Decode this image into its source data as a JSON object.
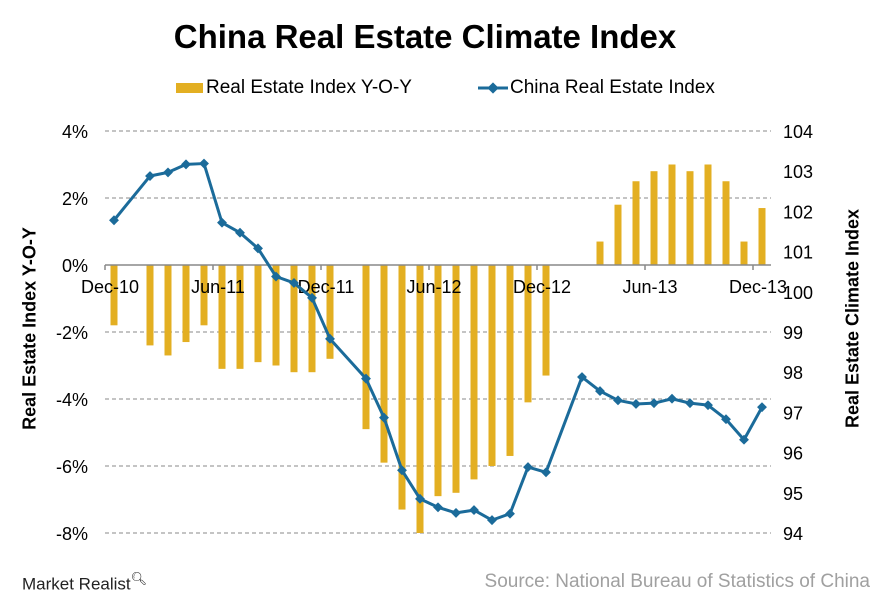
{
  "chart_data": {
    "type": "bar+line",
    "title": "China Real Estate Climate Index",
    "categories": [
      "Dec-10",
      "Jan-11",
      "Feb-11",
      "Mar-11",
      "Apr-11",
      "May-11",
      "Jun-11",
      "Jul-11",
      "Aug-11",
      "Sep-11",
      "Oct-11",
      "Nov-11",
      "Dec-11",
      "Jan-12",
      "Feb-12",
      "Mar-12",
      "Apr-12",
      "May-12",
      "Jun-12",
      "Jul-12",
      "Aug-12",
      "Sep-12",
      "Oct-12",
      "Nov-12",
      "Dec-12",
      "Jan-13",
      "Feb-13",
      "Mar-13",
      "Apr-13",
      "May-13",
      "Jun-13",
      "Jul-13",
      "Aug-13",
      "Sep-13",
      "Oct-13",
      "Nov-13",
      "Dec-13"
    ],
    "x_tick_labels": [
      "Dec-10",
      "Jun-11",
      "Dec-11",
      "Jun-12",
      "Dec-12",
      "Jun-13",
      "Dec-13"
    ],
    "series": [
      {
        "name": "Real Estate Index Y-O-Y",
        "type": "bar",
        "axis": "left",
        "color": "#E3AF22",
        "values": [
          -1.8,
          null,
          -2.4,
          -2.7,
          -2.3,
          -1.8,
          -3.1,
          -3.1,
          -2.9,
          -3.0,
          -3.2,
          -3.2,
          -2.8,
          null,
          -4.9,
          -5.9,
          -7.3,
          -8.0,
          -6.9,
          -6.8,
          -6.4,
          -6.0,
          -5.7,
          -4.1,
          -3.3,
          null,
          null,
          0.7,
          1.8,
          2.5,
          2.8,
          3.0,
          2.8,
          3.0,
          2.5,
          0.7,
          1.7
        ]
      },
      {
        "name": "China Real Estate Index",
        "type": "line",
        "axis": "right",
        "color": "#1B6B9A",
        "values": [
          101.78,
          null,
          102.88,
          102.97,
          103.17,
          103.19,
          101.72,
          101.47,
          101.08,
          100.38,
          100.22,
          99.85,
          98.83,
          null,
          97.84,
          96.87,
          95.56,
          94.85,
          94.64,
          94.5,
          94.57,
          94.32,
          94.48,
          95.64,
          95.51,
          null,
          97.88,
          97.53,
          97.3,
          97.21,
          97.23,
          97.34,
          97.23,
          97.18,
          96.83,
          96.32,
          97.13
        ]
      }
    ],
    "ylabel": "Real Estate Index Y-O-Y",
    "y2label": "Real Estate Climate Index",
    "ylim": [
      -8,
      4
    ],
    "y_ticks": [
      "4%",
      "2%",
      "0%",
      "-2%",
      "-4%",
      "-6%",
      "-8%"
    ],
    "y2lim": [
      94,
      104
    ],
    "y2_ticks": [
      "104",
      "103",
      "102",
      "101",
      "100",
      "99",
      "98",
      "97",
      "96",
      "95",
      "94"
    ],
    "grid": "horizontal dashed",
    "legend": "top"
  },
  "source": "Source: National Bureau of Statistics of China",
  "logo": "Market Realist"
}
